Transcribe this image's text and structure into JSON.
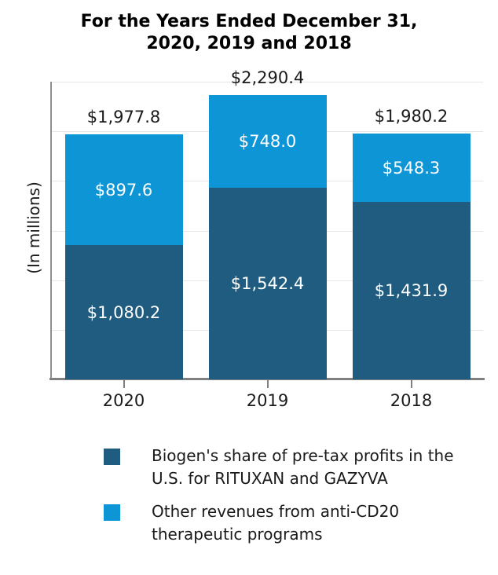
{
  "title": {
    "line1": "For the Years Ended December 31,",
    "line2": "2020, 2019 and 2018"
  },
  "chart_data": {
    "type": "bar",
    "stacked": true,
    "title": "For the Years Ended December 31, 2020, 2019 and 2018",
    "categories": [
      "2020",
      "2019",
      "2018"
    ],
    "series": [
      {
        "name": "Biogen's share of pre-tax profits in the U.S. for RITUXAN and GAZYVA",
        "color": "#1f5c80",
        "values": [
          1080.2,
          1542.4,
          1431.9
        ],
        "data_labels": [
          "$1,080.2",
          "$1,542.4",
          "$1,431.9"
        ]
      },
      {
        "name": "Other revenues from anti-CD20 therapeutic programs",
        "color": "#0d95d6",
        "values": [
          897.6,
          748.0,
          548.3
        ],
        "data_labels": [
          "$897.6",
          "$748.0",
          "$548.3"
        ]
      }
    ],
    "totals": [
      1977.8,
      2290.4,
      1980.2
    ],
    "total_labels": [
      "$1,977.8",
      "$2,290.4",
      "$1,980.2"
    ],
    "xlabel": "",
    "ylabel": "(In millions)",
    "ylim": [
      0,
      2400
    ],
    "grid": true,
    "gridline_values": [
      400,
      800,
      1200,
      1600,
      2000,
      2400
    ],
    "legend_position": "bottom"
  },
  "legend": {
    "items": [
      {
        "label": "Biogen's share of pre-tax profits in the U.S. for RITUXAN and GAZYVA",
        "label_lines": [
          "Biogen's share of pre-tax profits in the",
          "U.S. for RITUXAN and GAZYVA"
        ],
        "color": "#1f5c80",
        "swatch": "dark-blue-square"
      },
      {
        "label": "Other revenues from anti-CD20 therapeutic programs",
        "label_lines": [
          "Other revenues from anti-CD20",
          "therapeutic programs"
        ],
        "color": "#0d95d6",
        "swatch": "light-blue-square"
      }
    ]
  },
  "colors": {
    "dark_blue": "#1f5c80",
    "light_blue": "#0d95d6",
    "gridline": "#e6e6e6",
    "axis_line": "#808080",
    "inside_label_text": "#ffffff",
    "text": "#1a1a1a"
  }
}
